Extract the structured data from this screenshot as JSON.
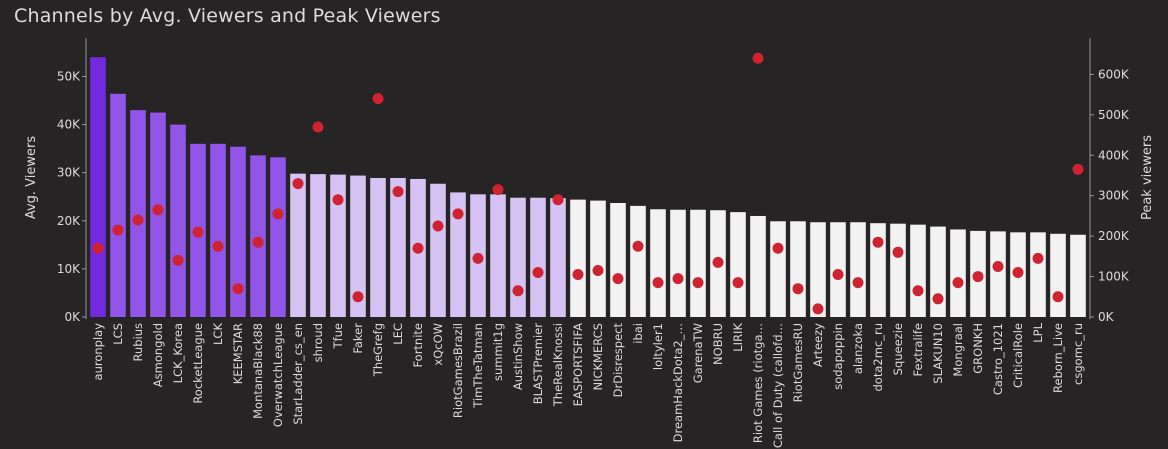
{
  "chart_data": {
    "type": "bar",
    "title": "Channels by Avg. Viewers and Peak Viewers",
    "ylabel": "Avg. Viewers",
    "y2label": "Peak viewers",
    "ylim": [
      0,
      58000
    ],
    "y2lim": [
      0,
      690000
    ],
    "yticks": [
      {
        "v": 0,
        "label": "0K"
      },
      {
        "v": 10000,
        "label": "10K"
      },
      {
        "v": 20000,
        "label": "20K"
      },
      {
        "v": 30000,
        "label": "30K"
      },
      {
        "v": 40000,
        "label": "40K"
      },
      {
        "v": 50000,
        "label": "50K"
      }
    ],
    "y2ticks": [
      {
        "v": 0,
        "label": "0K"
      },
      {
        "v": 100000,
        "label": "100K"
      },
      {
        "v": 200000,
        "label": "200K"
      },
      {
        "v": 300000,
        "label": "300K"
      },
      {
        "v": 400000,
        "label": "400K"
      },
      {
        "v": 500000,
        "label": "500K"
      },
      {
        "v": 600000,
        "label": "600K"
      }
    ],
    "colors": {
      "bar_dark": "#7229e0",
      "bar_mid": "#9155ea",
      "bar_light": "#d6c3f3",
      "bar_white": "#f2f2f2",
      "dot": "#cf2331",
      "axis": "#9a9a9a"
    },
    "categories": [
      "auronplay",
      "LCS",
      "Rubius",
      "Asmongold",
      "LCK_Korea",
      "RocketLeague",
      "LCK",
      "KEEMSTAR",
      "MontanaBlack88",
      "OverwatchLeague",
      "StarLadder_cs_en",
      "shroud",
      "Tfue",
      "Faker",
      "TheGrefg",
      "LEC",
      "Fortnite",
      "xQcOW",
      "RiotGamesBrazil",
      "TimTheTatman",
      "summit1g",
      "AustinShow",
      "BLASTPremier",
      "TheRealKnossi",
      "EASPORTSFIFA",
      "NICKMERCS",
      "DrDisrespect",
      "ibai",
      "loltyler1",
      "DreamHackDota2_…",
      "GarenaTW",
      "NOBRU",
      "LIRIK",
      "Riot Games (riotga…",
      "Call of Duty (callofd…",
      "RiotGamesRU",
      "Arteezy",
      "sodapoppin",
      "alanzoka",
      "dota2mc_ru",
      "Squeezie",
      "Fextralife",
      "SLAKUN10",
      "Mongraal",
      "GRONKH",
      "Castro_1021",
      "CriticalRole",
      "LPL",
      "Reborn_Live",
      "csgomc_ru"
    ],
    "series": [
      {
        "name": "Avg. Viewers",
        "values": [
          54000,
          46400,
          43000,
          42500,
          40000,
          36000,
          36000,
          35400,
          33600,
          33200,
          29800,
          29700,
          29600,
          29400,
          28900,
          28900,
          28700,
          27700,
          25900,
          25500,
          25500,
          24800,
          24800,
          24700,
          24400,
          24200,
          23700,
          23100,
          22400,
          22300,
          22300,
          22200,
          21800,
          21000,
          19900,
          19900,
          19700,
          19700,
          19700,
          19500,
          19400,
          19200,
          18800,
          18200,
          17900,
          17800,
          17600,
          17600,
          17300,
          17100
        ]
      },
      {
        "name": "Peak viewers",
        "values": [
          170000,
          215000,
          240000,
          265000,
          140000,
          210000,
          175000,
          70000,
          185000,
          255000,
          330000,
          470000,
          290000,
          50000,
          540000,
          310000,
          170000,
          225000,
          255000,
          145000,
          315000,
          65000,
          110000,
          290000,
          105000,
          115000,
          95000,
          175000,
          85000,
          95000,
          85000,
          135000,
          85000,
          640000,
          170000,
          70000,
          20000,
          105000,
          85000,
          185000,
          160000,
          65000,
          45000,
          85000,
          100000,
          125000,
          110000,
          145000,
          50000,
          365000
        ]
      }
    ],
    "bar_shades": [
      "dark",
      "mid",
      "mid",
      "mid",
      "mid",
      "mid",
      "mid",
      "mid",
      "mid",
      "mid",
      "light",
      "light",
      "light",
      "light",
      "light",
      "light",
      "light",
      "light",
      "light",
      "light",
      "light",
      "light",
      "light",
      "light",
      "white",
      "white",
      "white",
      "white",
      "white",
      "white",
      "white",
      "white",
      "white",
      "white",
      "white",
      "white",
      "white",
      "white",
      "white",
      "white",
      "white",
      "white",
      "white",
      "white",
      "white",
      "white",
      "white",
      "white",
      "white",
      "white"
    ]
  }
}
